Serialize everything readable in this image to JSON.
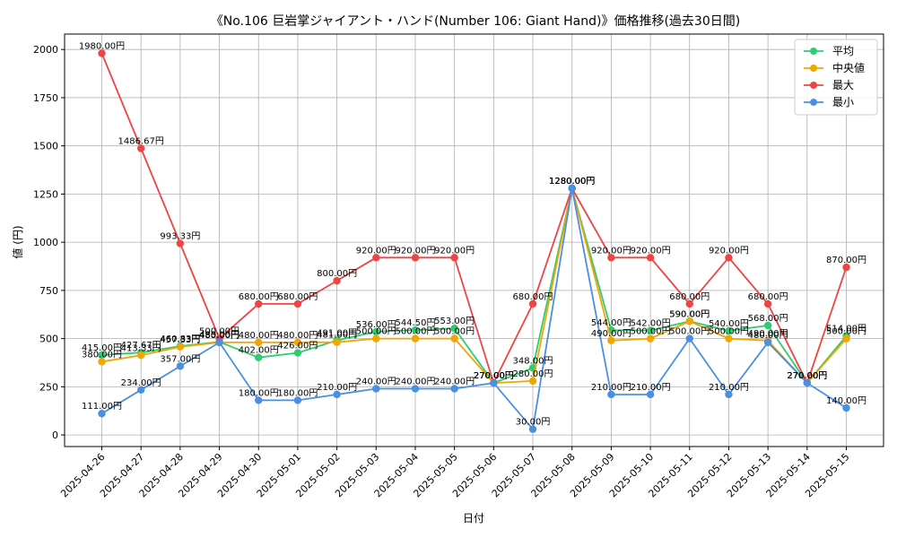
{
  "chart_data": {
    "type": "line",
    "title": "《No.106 巨岩掌ジャイアント・ハンド(Number 106: Giant Hand)》価格推移(過去30日間)",
    "xlabel": "日付",
    "ylabel": "値 (円)",
    "ylim": [
      -60,
      2080
    ],
    "yticks": [
      0,
      250,
      500,
      750,
      1000,
      1250,
      1500,
      1750,
      2000
    ],
    "grid": true,
    "legend_position": "top-right",
    "value_suffix": "円",
    "categories": [
      "2025-04-26",
      "2025-04-27",
      "2025-04-28",
      "2025-04-29",
      "2025-04-30",
      "2025-05-01",
      "2025-05-02",
      "2025-05-03",
      "2025-05-04",
      "2025-05-05",
      "2025-05-06",
      "2025-05-07",
      "2025-05-08",
      "2025-05-09",
      "2025-05-10",
      "2025-05-11",
      "2025-05-12",
      "2025-05-13",
      "2025-05-14",
      "2025-05-15"
    ],
    "series": [
      {
        "name": "平均",
        "color": "#2ecc71",
        "values": [
          415.0,
          427.67,
          460.83,
          483.0,
          402.0,
          426.0,
          491.0,
          536.0,
          544.5,
          553.0,
          270.0,
          348.0,
          1280.0,
          544.0,
          542.0,
          590.0,
          540.0,
          568.0,
          270.0,
          514.0
        ]
      },
      {
        "name": "中央値",
        "color": "#f0a500",
        "values": [
          380.0,
          413.33,
          457.33,
          480.0,
          480.0,
          480.0,
          481.0,
          500.0,
          500.0,
          500.0,
          270.0,
          280.0,
          1280.0,
          490.0,
          500.0,
          590.0,
          500.0,
          490.0,
          270.0,
          500.0
        ]
      },
      {
        "name": "最大",
        "color": "#ef4444",
        "values": [
          1980.0,
          1486.67,
          993.33,
          500.0,
          680.0,
          680.0,
          800.0,
          920.0,
          920.0,
          920.0,
          270.0,
          680.0,
          1280.0,
          920.0,
          920.0,
          680.0,
          920.0,
          680.0,
          270.0,
          870.0
        ]
      },
      {
        "name": "最小",
        "color": "#4a90e2",
        "values": [
          111.0,
          234.0,
          357.0,
          480.0,
          180.0,
          180.0,
          210.0,
          240.0,
          240.0,
          240.0,
          270.0,
          30.0,
          1280.0,
          210.0,
          210.0,
          500.0,
          210.0,
          480.0,
          270.0,
          140.0
        ]
      }
    ]
  }
}
